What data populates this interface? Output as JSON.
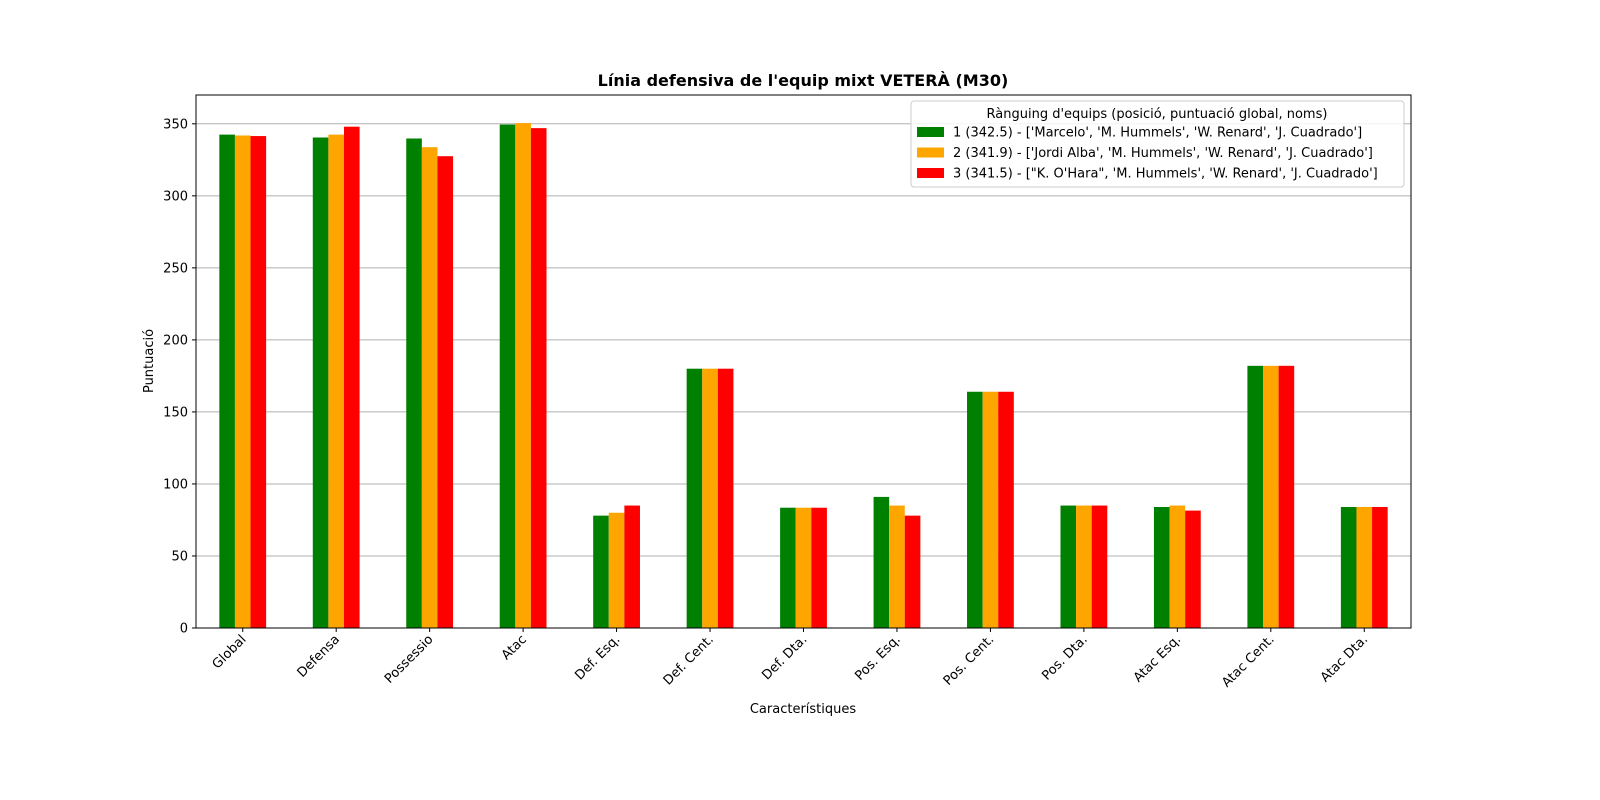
{
  "chart_data": {
    "type": "bar",
    "title": "Línia defensiva de l'equip mixt VETERÀ (M30)",
    "xlabel": "Característiques",
    "ylabel": "Puntuació",
    "ylim": [
      0,
      370
    ],
    "yticks": [
      0,
      50,
      100,
      150,
      200,
      250,
      300,
      350
    ],
    "grid": "horizontal",
    "legend_position": "top-right",
    "legend_title": "Rànguing d'equips (posició, puntuació global, noms)",
    "categories": [
      "Global",
      "Defensa",
      "Possessio",
      "Atac",
      "Def. Esq.",
      "Def. Cent.",
      "Def. Dta.",
      "Pos. Esq.",
      "Pos. Cent.",
      "Pos. Dta.",
      "Atac Esq.",
      "Atac Cent.",
      "Atac Dta."
    ],
    "series": [
      {
        "name": "1 (342.5) - ['Marcelo', 'M. Hummels', 'W. Renard', 'J. Cuadrado']",
        "color": "#008000",
        "values": [
          342.5,
          340.5,
          339.8,
          349.5,
          78,
          180,
          83.5,
          91,
          164,
          85,
          84,
          182,
          84
        ]
      },
      {
        "name": "2 (341.9) - ['Jordi Alba', 'M. Hummels', 'W. Renard', 'J. Cuadrado']",
        "color": "#FFA500",
        "values": [
          341.9,
          342.5,
          333.8,
          350.5,
          80,
          180,
          83.5,
          85,
          164,
          85,
          85,
          182,
          84
        ]
      },
      {
        "name": "3 (341.5) - [\"K. O'Hara\", 'M. Hummels', 'W. Renard', 'J. Cuadrado']",
        "color": "#FF0000",
        "values": [
          341.5,
          348,
          327.5,
          347,
          85,
          180,
          83.5,
          78,
          164,
          85,
          81.5,
          182,
          84
        ]
      }
    ]
  }
}
